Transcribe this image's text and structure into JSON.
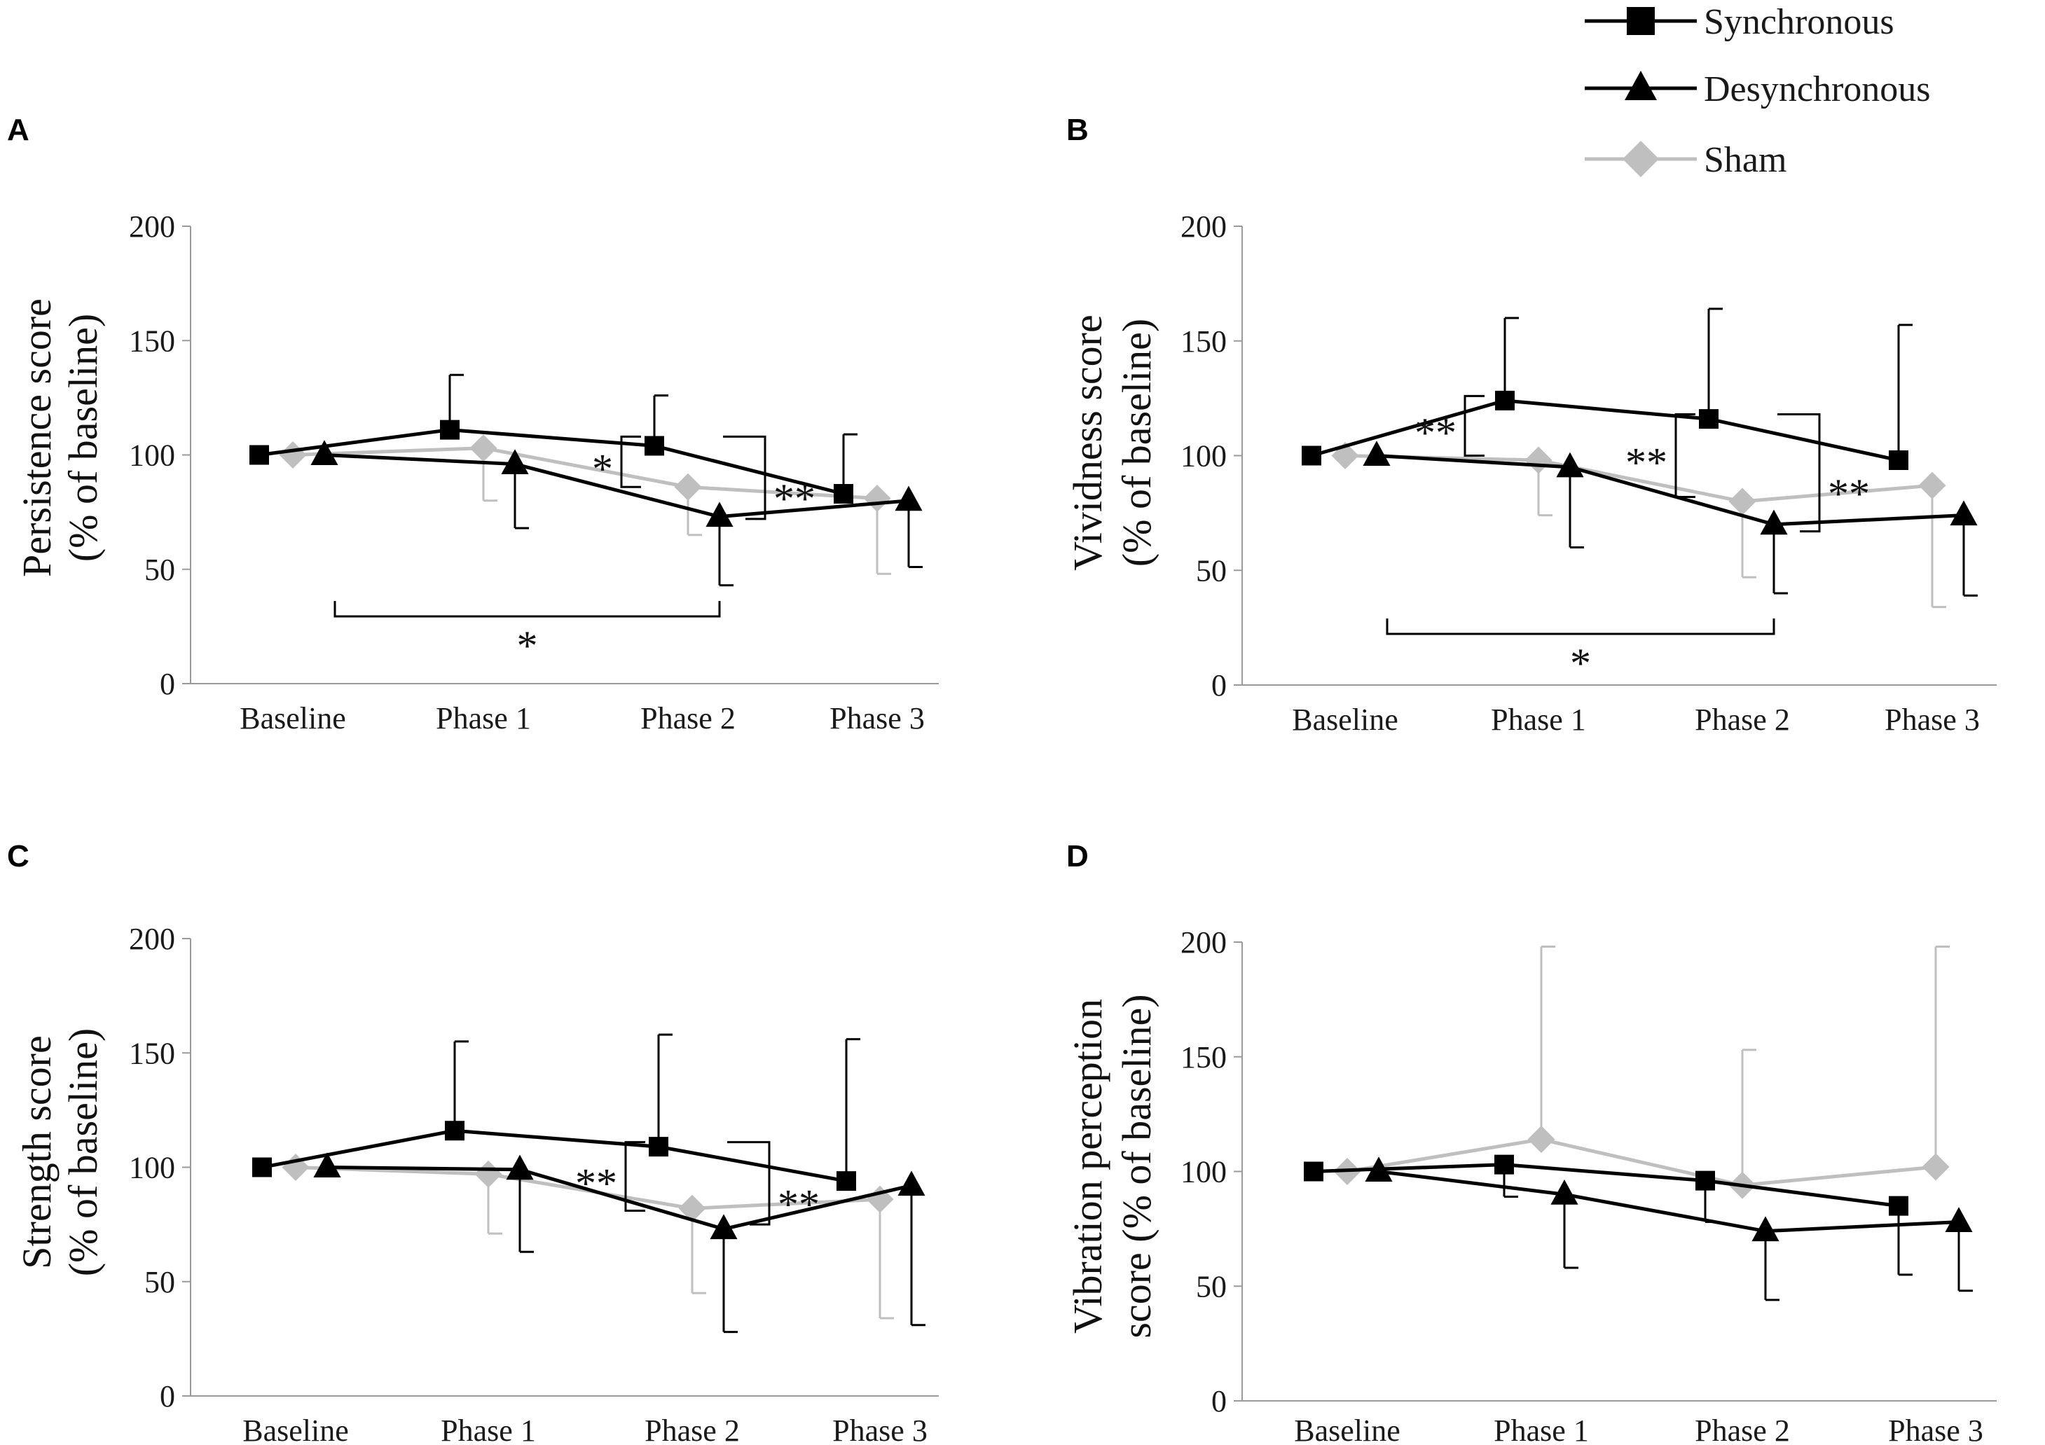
{
  "legend": [
    {
      "name": "Synchronous",
      "color": "#000000",
      "marker": "square"
    },
    {
      "name": "Desynchronous",
      "color": "#000000",
      "marker": "triangle"
    },
    {
      "name": "Sham",
      "color": "#bfbfbf",
      "marker": "diamond"
    }
  ],
  "colors": {
    "sync": "#000000",
    "desync": "#000000",
    "sham": "#bfbfbf"
  },
  "chart_data": [
    {
      "panel": "A",
      "type": "line",
      "ylabel_line1": "Persistence score",
      "ylabel_line2": "(% of baseline)",
      "categories": [
        "Baseline",
        "Phase 1",
        "Phase 2",
        "Phase 3"
      ],
      "ylim": [
        0,
        200
      ],
      "yticks": [
        0,
        50,
        100,
        150,
        200
      ],
      "series": [
        {
          "name": "Synchronous",
          "values": [
            100,
            111,
            104,
            83
          ],
          "err_up": [
            0,
            24,
            22,
            26
          ],
          "err_down": [
            0,
            0,
            0,
            0
          ]
        },
        {
          "name": "Desynchronous",
          "values": [
            100,
            96,
            73,
            80
          ],
          "err_up": [
            0,
            0,
            0,
            0
          ],
          "err_down": [
            0,
            28,
            30,
            29
          ]
        },
        {
          "name": "Sham",
          "values": [
            100,
            103,
            86,
            81
          ],
          "err_up": [
            0,
            0,
            0,
            0
          ],
          "err_down": [
            0,
            23,
            21,
            33
          ]
        }
      ],
      "significance": [
        {
          "label": "*",
          "from": "Baseline",
          "to": "Phase 2",
          "type": "bottom-bracket"
        },
        {
          "label": "*",
          "at": "Phase 2",
          "type": "left-bracket",
          "y_top": 108,
          "y_bottom": 86
        },
        {
          "label": "**",
          "at": "Phase 2-3",
          "type": "right-bracket",
          "y_top": 108,
          "y_bottom": 72
        }
      ]
    },
    {
      "panel": "B",
      "type": "line",
      "ylabel_line1": "Vividness score",
      "ylabel_line2": "(% of baseline)",
      "categories": [
        "Baseline",
        "Phase 1",
        "Phase 2",
        "Phase 3"
      ],
      "ylim": [
        0,
        200
      ],
      "yticks": [
        0,
        50,
        100,
        150,
        200
      ],
      "series": [
        {
          "name": "Synchronous",
          "values": [
            100,
            124,
            116,
            98
          ],
          "err_up": [
            0,
            36,
            48,
            59
          ],
          "err_down": [
            0,
            0,
            0,
            0
          ]
        },
        {
          "name": "Desynchronous",
          "values": [
            100,
            95,
            70,
            74
          ],
          "err_up": [
            0,
            0,
            0,
            0
          ],
          "err_down": [
            0,
            35,
            30,
            35
          ]
        },
        {
          "name": "Sham",
          "values": [
            100,
            98,
            80,
            87
          ],
          "err_up": [
            0,
            0,
            0,
            0
          ],
          "err_down": [
            0,
            24,
            33,
            53
          ]
        }
      ],
      "significance": [
        {
          "label": "*",
          "from": "Baseline",
          "to": "Phase 2",
          "type": "bottom-bracket"
        },
        {
          "label": "**",
          "at": "Phase 1",
          "type": "left-bracket",
          "y_top": 126,
          "y_bottom": 100
        },
        {
          "label": "**",
          "at": "Phase 2",
          "type": "left-bracket",
          "y_top": 118,
          "y_bottom": 82
        },
        {
          "label": "**",
          "at": "Phase 2-3",
          "type": "right-bracket",
          "y_top": 118,
          "y_bottom": 67
        }
      ]
    },
    {
      "panel": "C",
      "type": "line",
      "ylabel_line1": "Strength score",
      "ylabel_line2": "(% of baseline)",
      "categories": [
        "Baseline",
        "Phase 1",
        "Phase 2",
        "Phase 3"
      ],
      "ylim": [
        0,
        200
      ],
      "yticks": [
        0,
        50,
        100,
        150,
        200
      ],
      "series": [
        {
          "name": "Synchronous",
          "values": [
            100,
            116,
            109,
            94
          ],
          "err_up": [
            0,
            39,
            49,
            62
          ],
          "err_down": [
            0,
            0,
            0,
            0
          ]
        },
        {
          "name": "Desynchronous",
          "values": [
            100,
            99,
            73,
            92
          ],
          "err_up": [
            0,
            0,
            0,
            0
          ],
          "err_down": [
            0,
            36,
            45,
            61
          ]
        },
        {
          "name": "Sham",
          "values": [
            100,
            97,
            82,
            86
          ],
          "err_up": [
            0,
            0,
            0,
            0
          ],
          "err_down": [
            0,
            26,
            37,
            52
          ]
        }
      ],
      "significance": [
        {
          "label": "**",
          "at": "Phase 2",
          "type": "left-bracket",
          "y_top": 111,
          "y_bottom": 81
        },
        {
          "label": "**",
          "at": "Phase 2-3",
          "type": "right-bracket",
          "y_top": 111,
          "y_bottom": 75
        }
      ]
    },
    {
      "panel": "D",
      "type": "line",
      "ylabel_line1": "Vibration perception",
      "ylabel_line2": "score (% of baseline)",
      "categories": [
        "Baseline",
        "Phase 1",
        "Phase 2",
        "Phase 3"
      ],
      "ylim": [
        0,
        200
      ],
      "yticks": [
        0,
        50,
        100,
        150,
        200
      ],
      "series": [
        {
          "name": "Synchronous",
          "values": [
            100,
            103,
            96,
            85
          ],
          "err_up": [
            0,
            0,
            0,
            0
          ],
          "err_down": [
            0,
            14,
            18,
            30
          ]
        },
        {
          "name": "Desynchronous",
          "values": [
            100,
            90,
            74,
            78
          ],
          "err_up": [
            0,
            0,
            0,
            0
          ],
          "err_down": [
            0,
            32,
            30,
            30
          ]
        },
        {
          "name": "Sham",
          "values": [
            100,
            114,
            94,
            102
          ],
          "err_up": [
            0,
            84,
            59,
            96
          ],
          "err_down": [
            0,
            0,
            0,
            0
          ]
        }
      ],
      "significance": []
    }
  ]
}
